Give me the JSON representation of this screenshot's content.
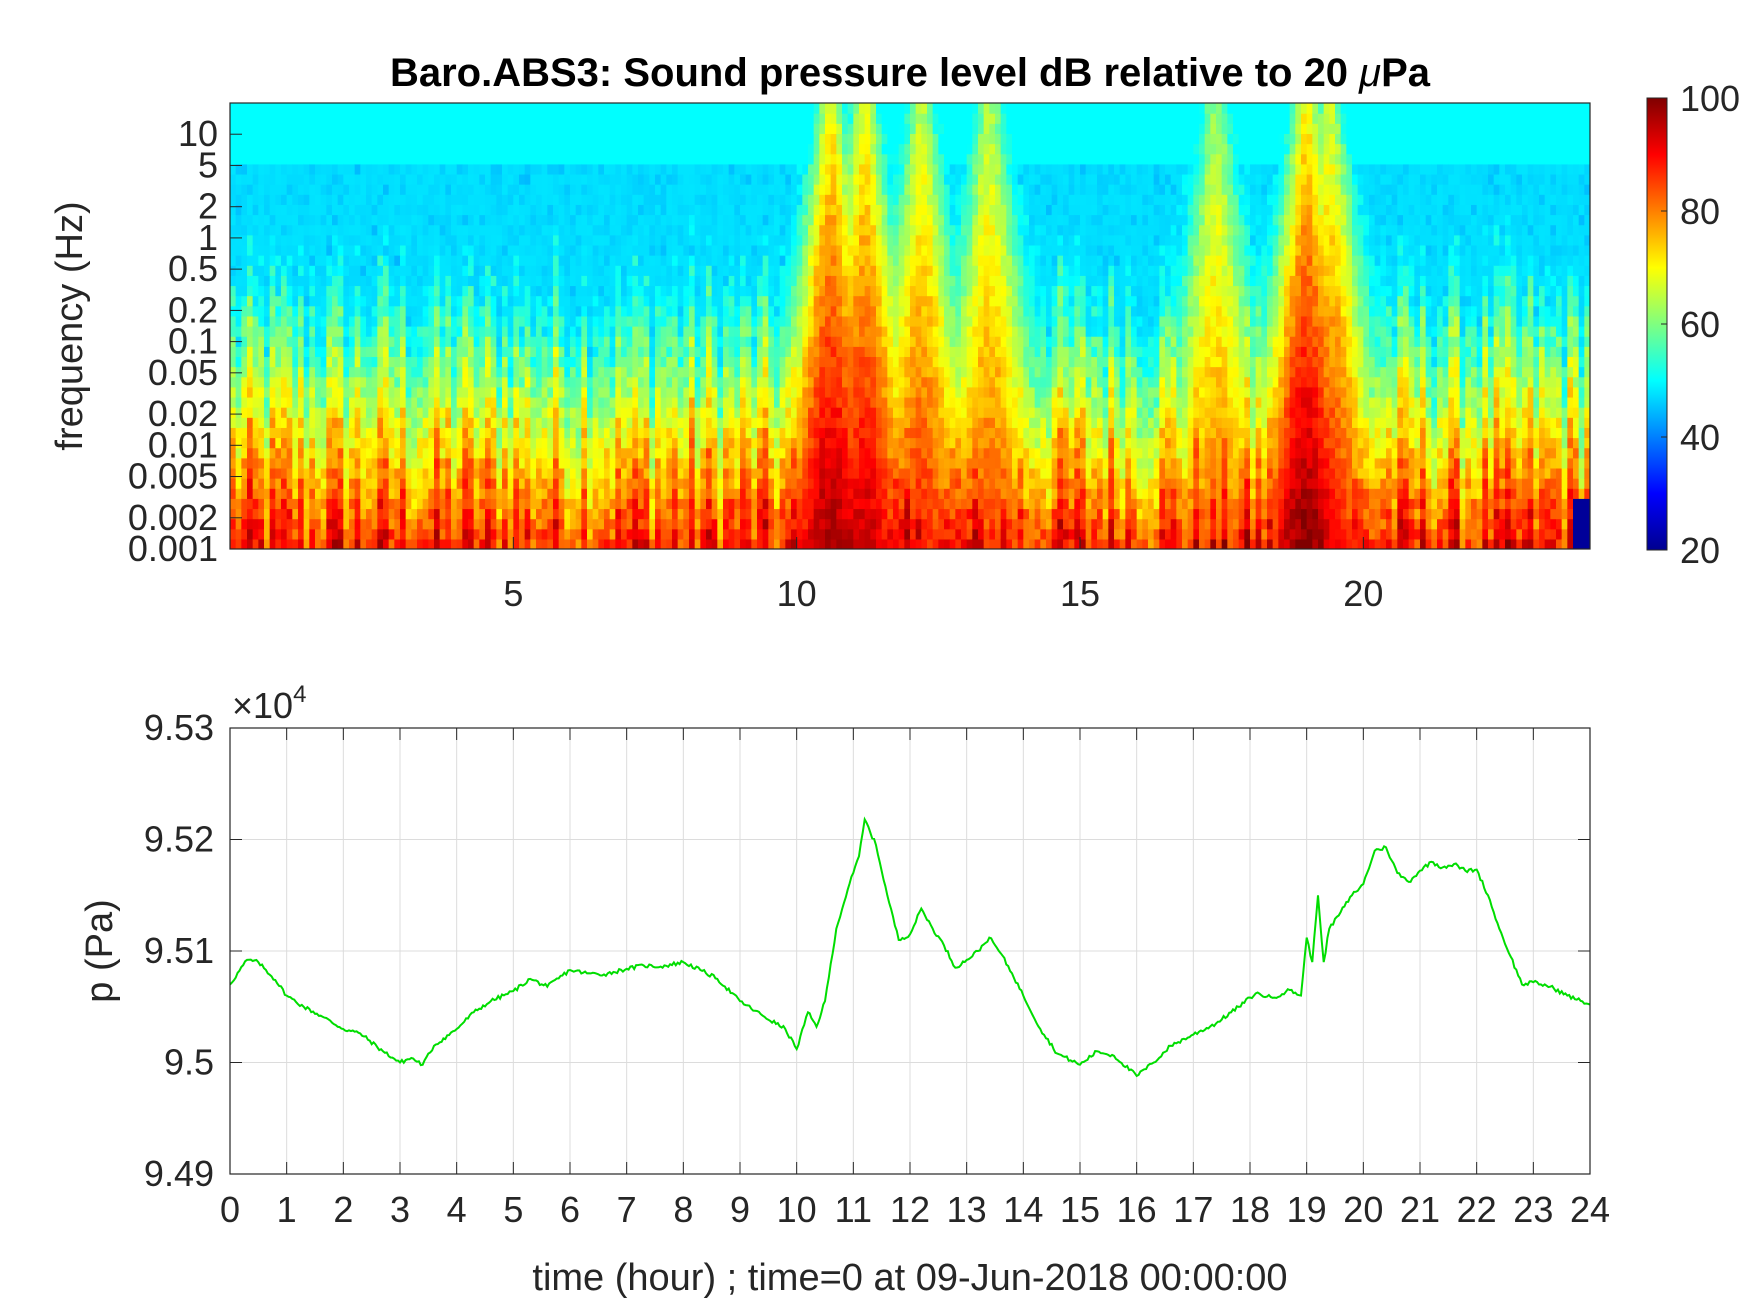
{
  "chart_data": [
    {
      "type": "heatmap",
      "title_main": "Baro.ABS3: Sound pressure level dB relative to 20 ",
      "title_mu": "μ",
      "title_unit": "Pa",
      "ylabel": "frequency (Hz)",
      "xlabel": "",
      "xlim": [
        0,
        24
      ],
      "ylim_hz": [
        0.001,
        20
      ],
      "y_scale": "log",
      "xticks": [
        5,
        10,
        15,
        20
      ],
      "yticks": [
        {
          "value": 0.001,
          "label": "0.001"
        },
        {
          "value": 0.002,
          "label": "0.002"
        },
        {
          "value": 0.005,
          "label": "0.005"
        },
        {
          "value": 0.01,
          "label": "0.01"
        },
        {
          "value": 0.02,
          "label": "0.02"
        },
        {
          "value": 0.05,
          "label": "0.05"
        },
        {
          "value": 0.1,
          "label": "0.1"
        },
        {
          "value": 0.2,
          "label": "0.2"
        },
        {
          "value": 0.5,
          "label": "0.5"
        },
        {
          "value": 1,
          "label": "1"
        },
        {
          "value": 2,
          "label": "2"
        },
        {
          "value": 5,
          "label": "5"
        },
        {
          "value": 10,
          "label": "10"
        }
      ],
      "colormap": "jet",
      "color_range_db": [
        20,
        100
      ],
      "colorbar_ticks": [
        20,
        40,
        60,
        80,
        100
      ],
      "intense_events_hours": [
        {
          "hour": 10.6,
          "peak_db": 98
        },
        {
          "hour": 11.2,
          "peak_db": 95
        },
        {
          "hour": 12.2,
          "peak_db": 88
        },
        {
          "hour": 13.4,
          "peak_db": 85
        },
        {
          "hour": 17.4,
          "peak_db": 82
        },
        {
          "hour": 19.0,
          "peak_db": 100
        },
        {
          "hour": 19.4,
          "peak_db": 90
        }
      ]
    },
    {
      "type": "line",
      "ylabel": "p (Pa)",
      "xlabel": "time (hour) ; time=0 at 09-Jun-2018 00:00:00",
      "y_multiplier_base": "×10",
      "y_multiplier_exp": "4",
      "xlim": [
        0,
        24
      ],
      "ylim": [
        94900,
        95300
      ],
      "xticks": [
        0,
        1,
        2,
        3,
        4,
        5,
        6,
        7,
        8,
        9,
        10,
        11,
        12,
        13,
        14,
        15,
        16,
        17,
        18,
        19,
        20,
        21,
        22,
        23,
        24
      ],
      "yticks": [
        {
          "value": 94900,
          "label": "9.49"
        },
        {
          "value": 95000,
          "label": "9.5"
        },
        {
          "value": 95100,
          "label": "9.51"
        },
        {
          "value": 95200,
          "label": "9.52"
        },
        {
          "value": 95300,
          "label": "9.53"
        }
      ],
      "grid": true,
      "color": "#00dd00",
      "series": [
        {
          "x": [
            0,
            0.3,
            0.5,
            0.8,
            1.0,
            1.3,
            1.6,
            2.0,
            2.3,
            2.7,
            3.0,
            3.2,
            3.4,
            3.6,
            4.0,
            4.3,
            4.6,
            5.0,
            5.3,
            5.6,
            6.0,
            6.3,
            6.6,
            7.0,
            7.3,
            7.6,
            8.0,
            8.3,
            8.6,
            9.0,
            9.4,
            9.8,
            10.0,
            10.2,
            10.35,
            10.5,
            10.7,
            10.9,
            11.0,
            11.1,
            11.2,
            11.4,
            11.6,
            11.8,
            12.0,
            12.2,
            12.4,
            12.6,
            12.8,
            13.0,
            13.2,
            13.4,
            13.6,
            13.8,
            14.0,
            14.3,
            14.6,
            15.0,
            15.3,
            15.6,
            16.0,
            16.3,
            16.6,
            17.0,
            17.4,
            17.8,
            18.1,
            18.4,
            18.7,
            18.9,
            19.0,
            19.1,
            19.2,
            19.3,
            19.4,
            19.6,
            19.8,
            20.0,
            20.2,
            20.4,
            20.6,
            20.8,
            21.0,
            21.2,
            21.4,
            21.6,
            21.8,
            22.0,
            22.2,
            22.4,
            22.6,
            22.8,
            23.0,
            23.3,
            23.6,
            24.0
          ],
          "y": [
            95070,
            95092,
            95090,
            95074,
            95060,
            95050,
            95042,
            95030,
            95026,
            95010,
            95000,
            95004,
            94998,
            95015,
            95030,
            95045,
            95055,
            95064,
            95075,
            95068,
            95083,
            95080,
            95079,
            95084,
            95087,
            95086,
            95090,
            95083,
            95075,
            95055,
            95042,
            95030,
            95012,
            95045,
            95032,
            95055,
            95120,
            95155,
            95170,
            95185,
            95218,
            95195,
            95150,
            95110,
            95115,
            95138,
            95120,
            95105,
            95085,
            95092,
            95100,
            95112,
            95098,
            95080,
            95060,
            95030,
            95008,
            94998,
            95010,
            95006,
            94988,
            95000,
            95015,
            95025,
            95035,
            95050,
            95062,
            95058,
            95065,
            95060,
            95112,
            95090,
            95150,
            95090,
            95120,
            95135,
            95150,
            95160,
            95190,
            95193,
            95170,
            95162,
            95172,
            95180,
            95175,
            95178,
            95172,
            95173,
            95150,
            95120,
            95095,
            95070,
            95072,
            95068,
            95060,
            95052
          ]
        }
      ]
    }
  ]
}
